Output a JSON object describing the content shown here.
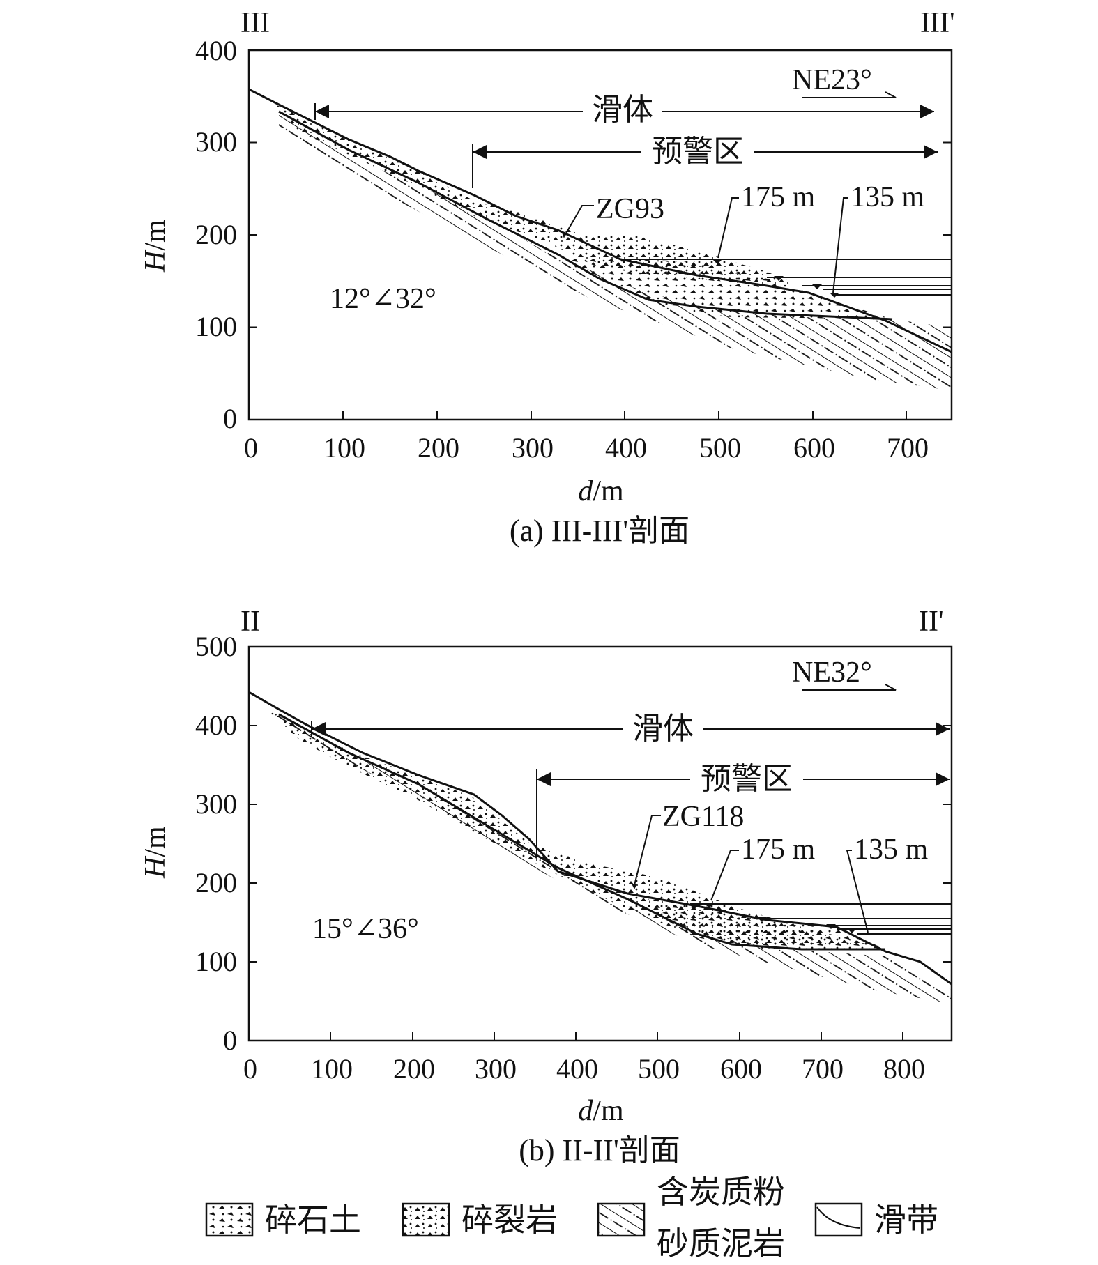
{
  "panel_a": {
    "corner_left": "III",
    "corner_right": "III'",
    "orientation": "NE23°",
    "slide_body": "滑体",
    "warning_zone": "预警区",
    "borehole": "ZG93",
    "water_175": "175 m",
    "water_135": "135 m",
    "bedding": "12°∠32°",
    "y_label_italic": "H",
    "y_label_unit": "/m",
    "x_label_italic": "d",
    "x_label_unit": "/m",
    "y_ticks": [
      "0",
      "100",
      "200",
      "300",
      "400"
    ],
    "x_ticks": [
      "0",
      "100",
      "200",
      "300",
      "400",
      "500",
      "600",
      "700"
    ],
    "caption": "(a) III-III'剖面"
  },
  "panel_b": {
    "corner_left": "II",
    "corner_right": "II'",
    "orientation": "NE32°",
    "slide_body": "滑体",
    "warning_zone": "预警区",
    "borehole": "ZG118",
    "water_175": "175 m",
    "water_135": "135 m",
    "bedding": "15°∠36°",
    "y_label_italic": "H",
    "y_label_unit": "/m",
    "x_label_italic": "d",
    "x_label_unit": "/m",
    "y_ticks": [
      "0",
      "100",
      "200",
      "300",
      "400",
      "500"
    ],
    "x_ticks": [
      "0",
      "100",
      "200",
      "300",
      "400",
      "500",
      "600",
      "700",
      "800"
    ],
    "caption": "(b) II-II'剖面"
  },
  "legend": {
    "gravel_soil": "碎石土",
    "fractured_rock": "碎裂岩",
    "mudstone_line1": "含炭质粉",
    "mudstone_line2": "砂质泥岩",
    "slip_zone": "滑带"
  }
}
